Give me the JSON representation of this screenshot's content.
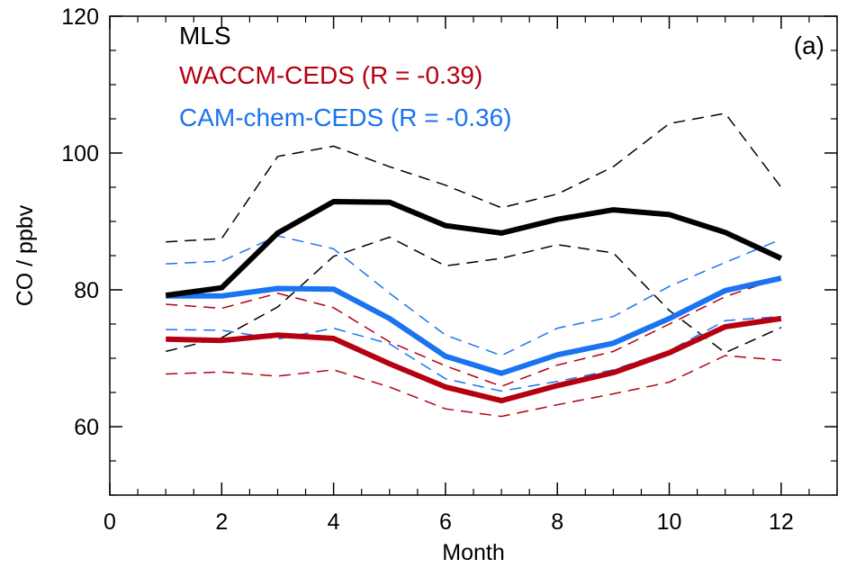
{
  "chart_data": {
    "type": "line",
    "title": "",
    "xlabel": "Month",
    "ylabel": "CO / ppbv",
    "panel_label": "(a)",
    "xlim": [
      0,
      13
    ],
    "ylim": [
      50,
      120
    ],
    "xticks": [
      0,
      2,
      4,
      6,
      8,
      10,
      12
    ],
    "yticks": [
      60,
      80,
      100,
      120
    ],
    "x": [
      1,
      2,
      3,
      4,
      5,
      6,
      7,
      8,
      9,
      10,
      11,
      12
    ],
    "legend_position": "top-left",
    "series": [
      {
        "name": "MLS",
        "color": "#000000",
        "values": [
          79.2,
          80.3,
          88.3,
          92.9,
          92.8,
          89.4,
          88.3,
          90.3,
          91.7,
          91.0,
          88.4,
          84.6
        ],
        "upper": [
          87.0,
          87.5,
          99.5,
          101.0,
          98.0,
          95.3,
          92.0,
          94.0,
          98.0,
          104.3,
          105.8,
          95.0
        ],
        "lower": [
          71.0,
          73.0,
          77.5,
          84.9,
          87.7,
          83.5,
          84.6,
          86.6,
          85.4,
          77.0,
          70.8,
          74.5
        ]
      },
      {
        "name": "WACCM-CEDS (R = -0.39)",
        "color": "#b5000f",
        "values": [
          72.8,
          72.6,
          73.4,
          72.9,
          69.2,
          65.8,
          63.8,
          66.0,
          67.9,
          70.8,
          74.6,
          75.8
        ],
        "upper": [
          77.9,
          77.3,
          79.5,
          77.4,
          72.4,
          68.9,
          65.9,
          69.0,
          71.0,
          75.0,
          79.0,
          81.8
        ],
        "lower": [
          67.7,
          68.0,
          67.4,
          68.3,
          65.8,
          62.6,
          61.5,
          63.2,
          64.8,
          66.5,
          70.4,
          69.7
        ]
      },
      {
        "name": "CAM-chem-CEDS (R = -0.36)",
        "color": "#1a73f0",
        "values": [
          79.1,
          79.1,
          80.2,
          80.1,
          75.8,
          70.3,
          67.8,
          70.5,
          72.2,
          75.8,
          79.9,
          81.7
        ],
        "upper": [
          83.8,
          84.2,
          87.9,
          86.0,
          79.5,
          73.4,
          70.4,
          74.4,
          76.1,
          80.5,
          84.0,
          87.4
        ],
        "lower": [
          74.2,
          74.1,
          72.8,
          74.4,
          72.1,
          67.0,
          65.2,
          66.6,
          68.3,
          71.1,
          75.5,
          76.1
        ]
      }
    ]
  }
}
